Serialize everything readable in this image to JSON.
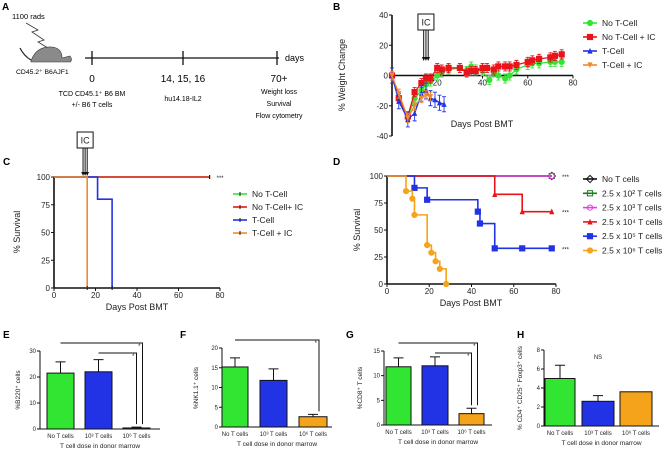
{
  "panels": [
    "A",
    "B",
    "C",
    "D",
    "E",
    "F",
    "G",
    "H"
  ],
  "diagram": {
    "radiation": "1100 rads",
    "recipient": "CD45.2⁺ B6AJF1",
    "axis_unit": "days",
    "timepoints": [
      {
        "day": "0",
        "desc": [
          "TCD CD45.1⁺ B6 BM",
          "+/- B6 T cells"
        ]
      },
      {
        "day": "14, 15, 16",
        "desc": [
          "hu14.18-IL2"
        ]
      },
      {
        "day": "70+",
        "desc": [
          "Weight loss",
          "Survival",
          "Flow cytometry"
        ]
      }
    ]
  },
  "colors": {
    "green": "#33e533",
    "red": "#e8141b",
    "blue": "#2233e6",
    "orange": "#f08a2c",
    "gold": "#f5a31a",
    "magenta": "#e83be8",
    "darkgreen": "#1f7a1f",
    "black": "#111111"
  },
  "chart_data": [
    {
      "panel": "B",
      "type": "line",
      "xlabel": "Days Post BMT",
      "ylabel": "% Weight Change",
      "xlim": [
        0,
        80
      ],
      "ylim": [
        -40,
        40
      ],
      "xticks": [
        "20",
        "40",
        "60",
        "80"
      ],
      "yticks": [
        "-40",
        "-20",
        "0",
        "20",
        "40"
      ],
      "annotation": "IC",
      "ic_days": [
        14,
        15,
        16
      ],
      "legend": "right",
      "series": [
        {
          "name": "No T-Cell",
          "color": "#33e533",
          "marker": "circle",
          "err": 3,
          "x": [
            0,
            3,
            7,
            10,
            13,
            15,
            17,
            20,
            22,
            25,
            30,
            33,
            35,
            37,
            40,
            43,
            45,
            47,
            50,
            52,
            55,
            60,
            62,
            65,
            70,
            72,
            75
          ],
          "y": [
            0,
            -15,
            -28,
            -15,
            -10,
            -6,
            -4,
            0,
            2,
            4,
            5,
            3,
            6,
            4,
            3,
            -3,
            2,
            0,
            -2,
            0,
            4,
            7,
            8,
            8,
            9,
            9,
            9
          ]
        },
        {
          "name": "No T-Cell + IC",
          "color": "#e8141b",
          "marker": "square",
          "err": 3,
          "x": [
            0,
            3,
            7,
            10,
            13,
            15,
            17,
            20,
            22,
            25,
            30,
            33,
            35,
            37,
            40,
            42,
            45,
            47,
            50,
            52,
            55,
            60,
            62,
            65,
            70,
            72,
            75
          ],
          "y": [
            0,
            -15,
            -27,
            -11,
            -5,
            -2,
            -2,
            5,
            4,
            5,
            5,
            2,
            3,
            3,
            5,
            5,
            4,
            6,
            6,
            6,
            7,
            9,
            10,
            11,
            12,
            13,
            14
          ]
        },
        {
          "name": "T-Cell",
          "color": "#2233e6",
          "marker": "triangle",
          "err": 5,
          "x": [
            0,
            3,
            7,
            10,
            13,
            15,
            17,
            19,
            21,
            23
          ],
          "y": [
            0,
            -17,
            -29,
            -25,
            -12,
            -10,
            -15,
            -16,
            -18,
            -19
          ]
        },
        {
          "name": "T-Cell + IC",
          "color": "#f08a2c",
          "marker": "triangle-down",
          "err": 3,
          "x": [
            0,
            3,
            7,
            10,
            13,
            15,
            17
          ],
          "y": [
            0,
            -12,
            -28,
            -20,
            -15,
            -13,
            -14
          ]
        }
      ]
    },
    {
      "panel": "C",
      "type": "line",
      "subtype": "survival",
      "xlabel": "Days Post BMT",
      "ylabel": "% Survival",
      "xlim": [
        0,
        80
      ],
      "ylim": [
        0,
        100
      ],
      "xticks": [
        "0",
        "20",
        "40",
        "60",
        "80"
      ],
      "yticks": [
        "0",
        "25",
        "50",
        "75",
        "100"
      ],
      "annotation": "IC",
      "ic_days": [
        14,
        15,
        16
      ],
      "significance": "***",
      "legend": "right",
      "series": [
        {
          "name": "No T-Cell",
          "color": "#33e533",
          "x": [
            0,
            75
          ],
          "y": [
            100,
            100
          ]
        },
        {
          "name": "No T-Cell+ IC",
          "color": "#e8141b",
          "x": [
            0,
            75
          ],
          "y": [
            100,
            100
          ]
        },
        {
          "name": "T-Cell",
          "color": "#2233e6",
          "x": [
            0,
            21,
            28
          ],
          "y": [
            100,
            80,
            0
          ]
        },
        {
          "name": "T-Cell + IC",
          "color": "#f08a2c",
          "x": [
            0,
            16
          ],
          "y": [
            100,
            0
          ]
        }
      ]
    },
    {
      "panel": "D",
      "type": "line",
      "subtype": "survival",
      "xlabel": "Days Post BMT",
      "ylabel": "% Survival",
      "xlim": [
        0,
        80
      ],
      "ylim": [
        0,
        100
      ],
      "xticks": [
        "0",
        "20",
        "40",
        "60",
        "80"
      ],
      "yticks": [
        "0",
        "25",
        "50",
        "75",
        "100"
      ],
      "legend": "right",
      "series": [
        {
          "name": "No T cells",
          "color": "#111111",
          "marker": "diamond-open",
          "x": [
            0,
            78
          ],
          "y": [
            100,
            100
          ],
          "significance": "***"
        },
        {
          "name": "2.5 x 10² T cells",
          "color": "#1f7a1f",
          "marker": "square-open",
          "x": [
            0,
            78
          ],
          "y": [
            100,
            100
          ]
        },
        {
          "name": "2.5 x 10³ T cells",
          "color": "#e83be8",
          "marker": "circle-open",
          "x": [
            0,
            78
          ],
          "y": [
            100,
            100
          ]
        },
        {
          "name": "2.5 x 10⁴ T cells",
          "color": "#e8141b",
          "marker": "triangle",
          "x": [
            0,
            51,
            64,
            78
          ],
          "y": [
            100,
            83,
            67,
            67
          ],
          "significance": "***"
        },
        {
          "name": "2.5 x 10⁵ T cells",
          "color": "#2233e6",
          "marker": "square",
          "x": [
            0,
            13,
            19,
            43,
            44,
            51,
            64,
            78
          ],
          "y": [
            100,
            89,
            78,
            67,
            56,
            33,
            33,
            33
          ],
          "significance": "***"
        },
        {
          "name": "2.5 x 10⁶ T cells",
          "color": "#f5a31a",
          "marker": "circle",
          "x": [
            0,
            9,
            12,
            13,
            19,
            21,
            23,
            25,
            28
          ],
          "y": [
            100,
            86,
            79,
            64,
            36,
            29,
            21,
            14,
            0
          ]
        }
      ]
    },
    {
      "panel": "E",
      "type": "bar",
      "xlabel": "T cell dose in donor marrow",
      "ylabel": "%B220⁺ cells",
      "ylim": [
        0,
        30
      ],
      "yticks": [
        "0",
        "10",
        "20",
        "30"
      ],
      "categories": [
        "No T cells",
        "10³ T cells",
        "10⁶ T cells"
      ],
      "values": [
        21.5,
        22,
        0.4
      ],
      "errors": [
        4.3,
        4.7,
        0.3
      ],
      "colors": [
        "#33e533",
        "#2233e6",
        "#f5a31a"
      ],
      "significance": [
        {
          "from": 0,
          "to": 2,
          "label": "*"
        },
        {
          "from": 1,
          "to": 2,
          "label": "*"
        }
      ]
    },
    {
      "panel": "F",
      "type": "bar",
      "xlabel": "T cell dose in donor marrow",
      "ylabel": "%NK1.1⁺ cells",
      "ylim": [
        0,
        20
      ],
      "yticks": [
        "0",
        "5",
        "10",
        "15",
        "20"
      ],
      "categories": [
        "No T cells",
        "10³ T cells",
        "10⁶ T cells"
      ],
      "values": [
        15.2,
        11.8,
        2.6
      ],
      "errors": [
        2.3,
        2.9,
        0.6
      ],
      "colors": [
        "#33e533",
        "#2233e6",
        "#f5a31a"
      ],
      "significance": [
        {
          "from": 0,
          "to": 2,
          "label": "*"
        }
      ]
    },
    {
      "panel": "G",
      "type": "bar",
      "xlabel": "T cell dose in donor marrow",
      "ylabel": "%CD8⁺ T cells",
      "ylim": [
        0,
        15
      ],
      "yticks": [
        "0",
        "5",
        "10",
        "15"
      ],
      "categories": [
        "No T cells",
        "10³ T cells",
        "10⁶ T cells"
      ],
      "values": [
        11.8,
        12,
        2.3
      ],
      "errors": [
        1.8,
        1.8,
        1.1
      ],
      "colors": [
        "#33e533",
        "#2233e6",
        "#f5a31a"
      ],
      "significance": [
        {
          "from": 0,
          "to": 2,
          "label": "*"
        },
        {
          "from": 1,
          "to": 2,
          "label": "*"
        }
      ]
    },
    {
      "panel": "H",
      "type": "bar",
      "xlabel": "T cell dose in donor marrow",
      "ylabel": "% CD4⁺ CD25⁺ Foxp3⁺ cells",
      "ylim": [
        0,
        8
      ],
      "yticks": [
        "0",
        "2",
        "4",
        "6",
        "8"
      ],
      "categories": [
        "No T cells",
        "10³ T cells",
        "10⁶ T cells"
      ],
      "values": [
        5.0,
        2.6,
        3.6
      ],
      "errors": [
        1.4,
        0.6,
        0
      ],
      "colors": [
        "#33e533",
        "#2233e6",
        "#f5a31a"
      ],
      "annotation": "NS"
    }
  ]
}
